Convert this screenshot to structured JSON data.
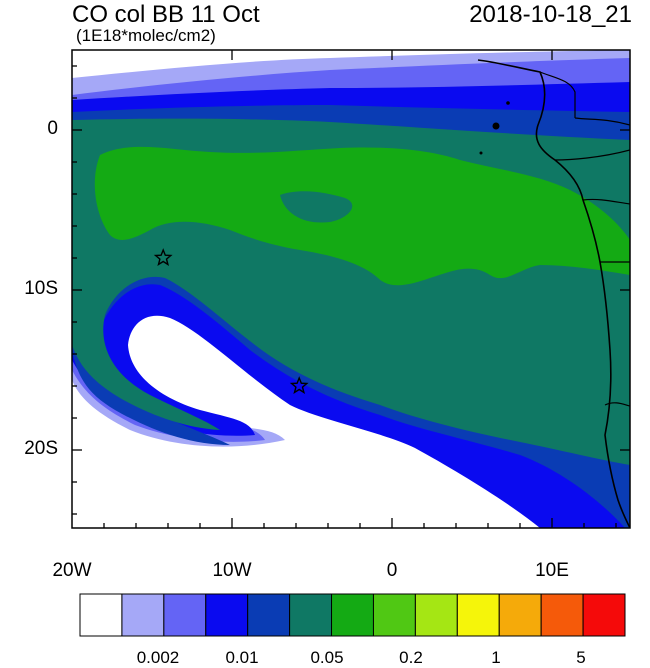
{
  "header": {
    "title": "CO col BB 11 Oct",
    "units": "(1E18*molec/cm2)",
    "timestamp": "2018-10-18_21"
  },
  "axes": {
    "lat_labels": [
      "0",
      "10S",
      "20S"
    ],
    "lon_labels": [
      "20W",
      "10W",
      "0",
      "10E"
    ]
  },
  "colorbar": {
    "colors": [
      "#ffffff",
      "#a5a8f7",
      "#6464f5",
      "#0a0af0",
      "#0a3cb4",
      "#0f7864",
      "#14aa14",
      "#50c814",
      "#a5e614",
      "#f5f50a",
      "#f5aa0a",
      "#f55a0a",
      "#f50a0a"
    ],
    "labels": [
      "0.002",
      "0.01",
      "0.05",
      "0.2",
      "1",
      "5"
    ]
  },
  "markers": {
    "icon": "star-outline",
    "points": [
      {
        "lon": -14.3,
        "lat": -8.0
      },
      {
        "lon": -5.8,
        "lat": -16.0
      }
    ]
  }
}
